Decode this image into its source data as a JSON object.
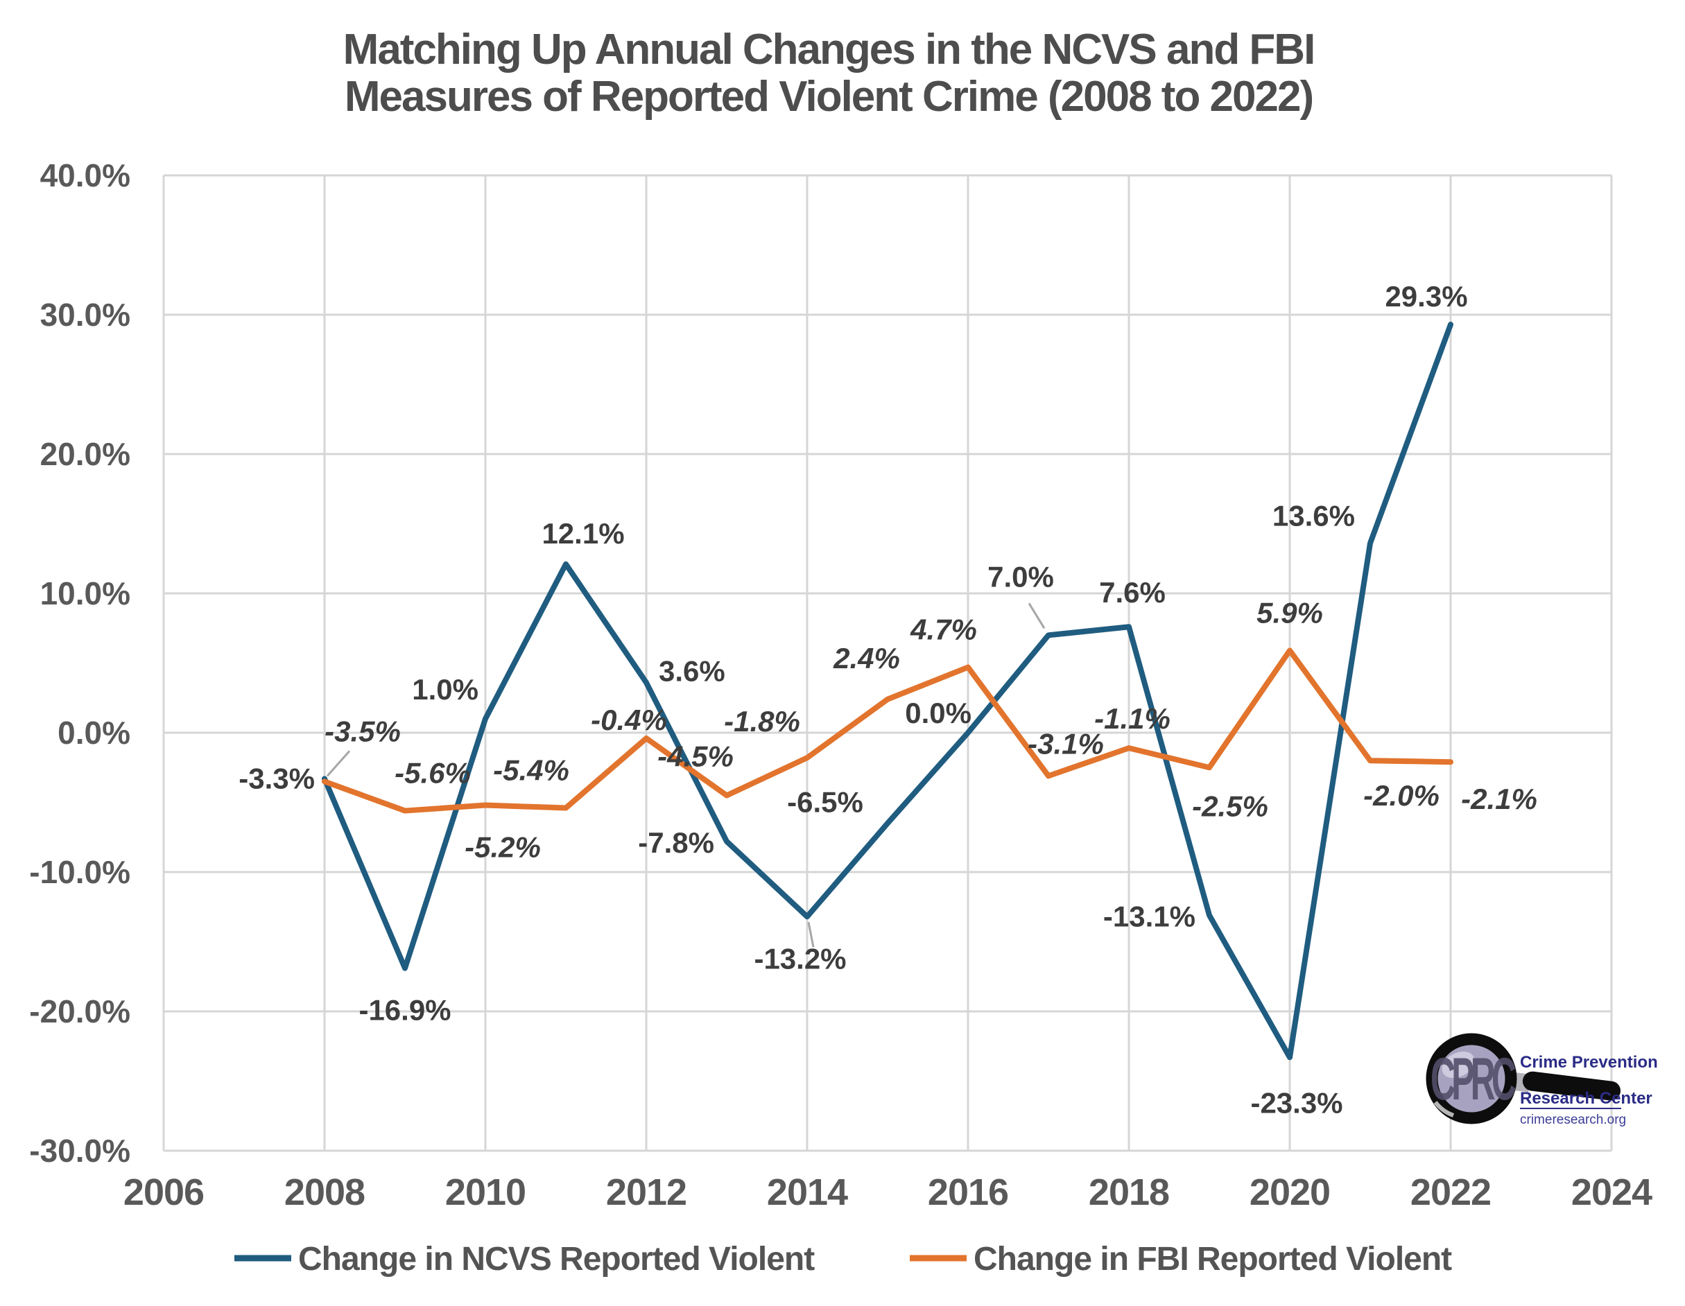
{
  "title": {
    "line1": "Matching Up Annual Changes in the NCVS and FBI",
    "line2": "Measures of Reported Violent Crime (2008 to 2022)"
  },
  "chart_data": {
    "type": "line",
    "x": [
      2008,
      2009,
      2010,
      2011,
      2012,
      2013,
      2014,
      2015,
      2016,
      2017,
      2018,
      2019,
      2020,
      2021,
      2022
    ],
    "series": [
      {
        "name": "Change in NCVS Reported Violent",
        "color": "#1F5C80",
        "values": [
          -3.3,
          -16.9,
          1.0,
          12.1,
          3.6,
          -7.8,
          -13.2,
          -6.5,
          0.0,
          7.0,
          7.6,
          -13.1,
          -23.3,
          13.6,
          29.3
        ],
        "labels": [
          "-3.3%",
          "-16.9%",
          "1.0%",
          "12.1%",
          "3.6%",
          "-7.8%",
          "-13.2%",
          "-6.5%",
          "0.0%",
          "7.0%",
          "7.6%",
          "-13.1%",
          "-23.3%",
          "13.6%",
          "29.3%"
        ]
      },
      {
        "name": "Change in FBI Reported Violent",
        "color": "#E2742D",
        "values": [
          -3.5,
          -5.6,
          -5.2,
          -5.4,
          -0.4,
          -4.5,
          -1.8,
          2.4,
          4.7,
          -3.1,
          -1.1,
          -2.5,
          5.9,
          -2.0,
          -2.1
        ],
        "labels": [
          "-3.5%",
          "-5.6%",
          "-5.2%",
          "-5.4%",
          "-0.4%",
          "-4.5%",
          "-1.8%",
          "2.4%",
          "4.7%",
          "-3.1%",
          "-1.1%",
          "-2.5%",
          "5.9%",
          "-2.0%",
          "-2.1%"
        ]
      }
    ],
    "x_ticks": [
      2006,
      2008,
      2010,
      2012,
      2014,
      2016,
      2018,
      2020,
      2022,
      2024
    ],
    "y_ticks": [
      {
        "value": 40,
        "label": "40.0%"
      },
      {
        "value": 30,
        "label": "30.0%"
      },
      {
        "value": 20,
        "label": "20.0%"
      },
      {
        "value": 10,
        "label": "10.0%"
      },
      {
        "value": 0,
        "label": "0.0%"
      },
      {
        "value": -10,
        "label": "-10.0%"
      },
      {
        "value": -20,
        "label": "-20.0%"
      },
      {
        "value": -30,
        "label": "-30.0%"
      }
    ],
    "xlim": [
      2006,
      2024
    ],
    "ylim": [
      -30,
      40
    ],
    "grid": true,
    "legend_position": "bottom"
  },
  "legend": {
    "items": [
      {
        "label": "Change in NCVS Reported Violent",
        "color": "#1F5C80"
      },
      {
        "label": "Change in FBI Reported Violent",
        "color": "#E2742D"
      }
    ]
  },
  "logo": {
    "acronym": "CPRC",
    "org_line1": "Crime Prevention",
    "org_line2": "Research Center",
    "website": "crimeresearch.org"
  },
  "colors": {
    "grid": "#D6D6D6",
    "title_text": "#4D4D4D",
    "axis_text": "#595959",
    "data_label_text": "#3D3D3D",
    "background": "#FFFFFF",
    "leader_line": "#A6A6A6",
    "logo_text": "#2B2C86"
  }
}
